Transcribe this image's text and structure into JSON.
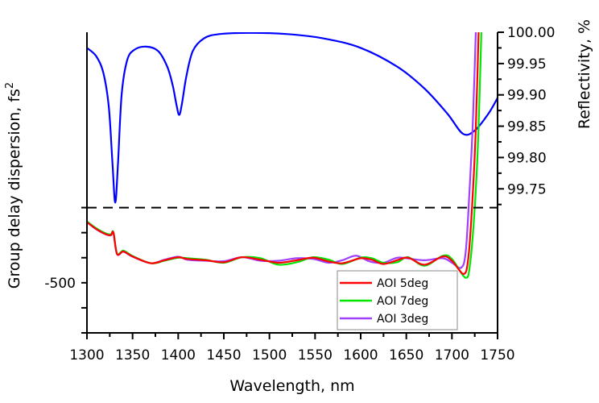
{
  "chart_data": {
    "type": "line",
    "xlabel": "Wavelength, nm",
    "ylabel_left": "Group delay dispersion, fs²",
    "ylabel_left_base": "Group delay dispersion, fs",
    "ylabel_left_sup": "2",
    "ylabel_right": "Reflectivity, %",
    "xlim": [
      1300,
      1750
    ],
    "x_ticks": [
      1300,
      1350,
      1400,
      1450,
      1500,
      1550,
      1600,
      1650,
      1700,
      1750
    ],
    "ylim_left": [
      -700,
      500
    ],
    "y_left_ticks_labeled": [
      {
        "v": -500,
        "label": "-500"
      }
    ],
    "y_left_ticks": [
      -700,
      -600,
      -500,
      -400,
      -300,
      -200
    ],
    "ylim_right": [
      99.52,
      100.0
    ],
    "y_right_ticks": [
      "99.75",
      "99.80",
      "99.85",
      "99.90",
      "99.95",
      "100.00"
    ],
    "divider_right_value": 99.72,
    "reflectivity": {
      "name": "Reflectivity",
      "color": "#0000ff",
      "x": [
        1300,
        1310,
        1318,
        1324,
        1328,
        1331,
        1334,
        1338,
        1344,
        1352,
        1365,
        1378,
        1388,
        1394,
        1398,
        1401,
        1404,
        1409,
        1416,
        1428,
        1445,
        1480,
        1520,
        1560,
        1600,
        1640,
        1670,
        1695,
        1712,
        1725,
        1740,
        1750
      ],
      "y": [
        99.975,
        99.962,
        99.935,
        99.88,
        99.79,
        99.728,
        99.79,
        99.9,
        99.955,
        99.972,
        99.977,
        99.97,
        99.945,
        99.915,
        99.885,
        99.868,
        99.885,
        99.93,
        99.97,
        99.99,
        99.997,
        99.999,
        99.997,
        99.99,
        99.975,
        99.945,
        99.91,
        99.87,
        99.838,
        99.843,
        99.87,
        99.895
      ]
    },
    "series": [
      {
        "name": "AOI 5deg",
        "color": "#ff0000",
        "x": [
          1300,
          1310,
          1320,
          1326,
          1329,
          1333,
          1340,
          1350,
          1370,
          1385,
          1400,
          1410,
          1430,
          1450,
          1470,
          1490,
          1510,
          1530,
          1548,
          1565,
          1580,
          1600,
          1612,
          1625,
          1640,
          1652,
          1670,
          1690,
          1700,
          1713,
          1718,
          1722,
          1726,
          1730
        ],
        "y": [
          -258,
          -285,
          -305,
          -310,
          -300,
          -385,
          -375,
          -395,
          -422,
          -410,
          -398,
          -405,
          -410,
          -418,
          -398,
          -408,
          -420,
          -410,
          -400,
          -415,
          -422,
          -402,
          -408,
          -425,
          -410,
          -400,
          -428,
          -395,
          -412,
          -465,
          -400,
          -200,
          100,
          600
        ]
      },
      {
        "name": "AOI 7deg",
        "color": "#00e600",
        "x": [
          1300,
          1310,
          1320,
          1326,
          1329,
          1333,
          1340,
          1350,
          1370,
          1385,
          1400,
          1410,
          1430,
          1450,
          1470,
          1490,
          1510,
          1530,
          1548,
          1565,
          1580,
          1600,
          1612,
          1625,
          1640,
          1652,
          1670,
          1690,
          1700,
          1715,
          1720,
          1725,
          1729,
          1733
        ],
        "y": [
          -255,
          -282,
          -302,
          -307,
          -298,
          -383,
          -372,
          -393,
          -422,
          -412,
          -400,
          -402,
          -408,
          -420,
          -398,
          -402,
          -428,
          -418,
          -398,
          -408,
          -425,
          -400,
          -402,
          -420,
          -418,
          -398,
          -432,
          -392,
          -405,
          -480,
          -420,
          -200,
          100,
          600
        ]
      },
      {
        "name": "AOI 3deg",
        "color": "#a040ff",
        "x": [
          1300,
          1310,
          1320,
          1326,
          1329,
          1333,
          1340,
          1350,
          1370,
          1385,
          1400,
          1410,
          1430,
          1450,
          1470,
          1490,
          1510,
          1530,
          1548,
          1565,
          1580,
          1595,
          1610,
          1625,
          1640,
          1652,
          1670,
          1690,
          1700,
          1710,
          1715,
          1719,
          1723,
          1727
        ],
        "y": [
          -258,
          -286,
          -306,
          -311,
          -301,
          -386,
          -376,
          -396,
          -422,
          -408,
          -396,
          -408,
          -412,
          -414,
          -398,
          -412,
          -412,
          -402,
          -405,
          -420,
          -410,
          -392,
          -415,
          -420,
          -400,
          -403,
          -410,
          -402,
          -420,
          -440,
          -380,
          -150,
          150,
          600
        ]
      }
    ],
    "legend_position": "bottom-right"
  }
}
